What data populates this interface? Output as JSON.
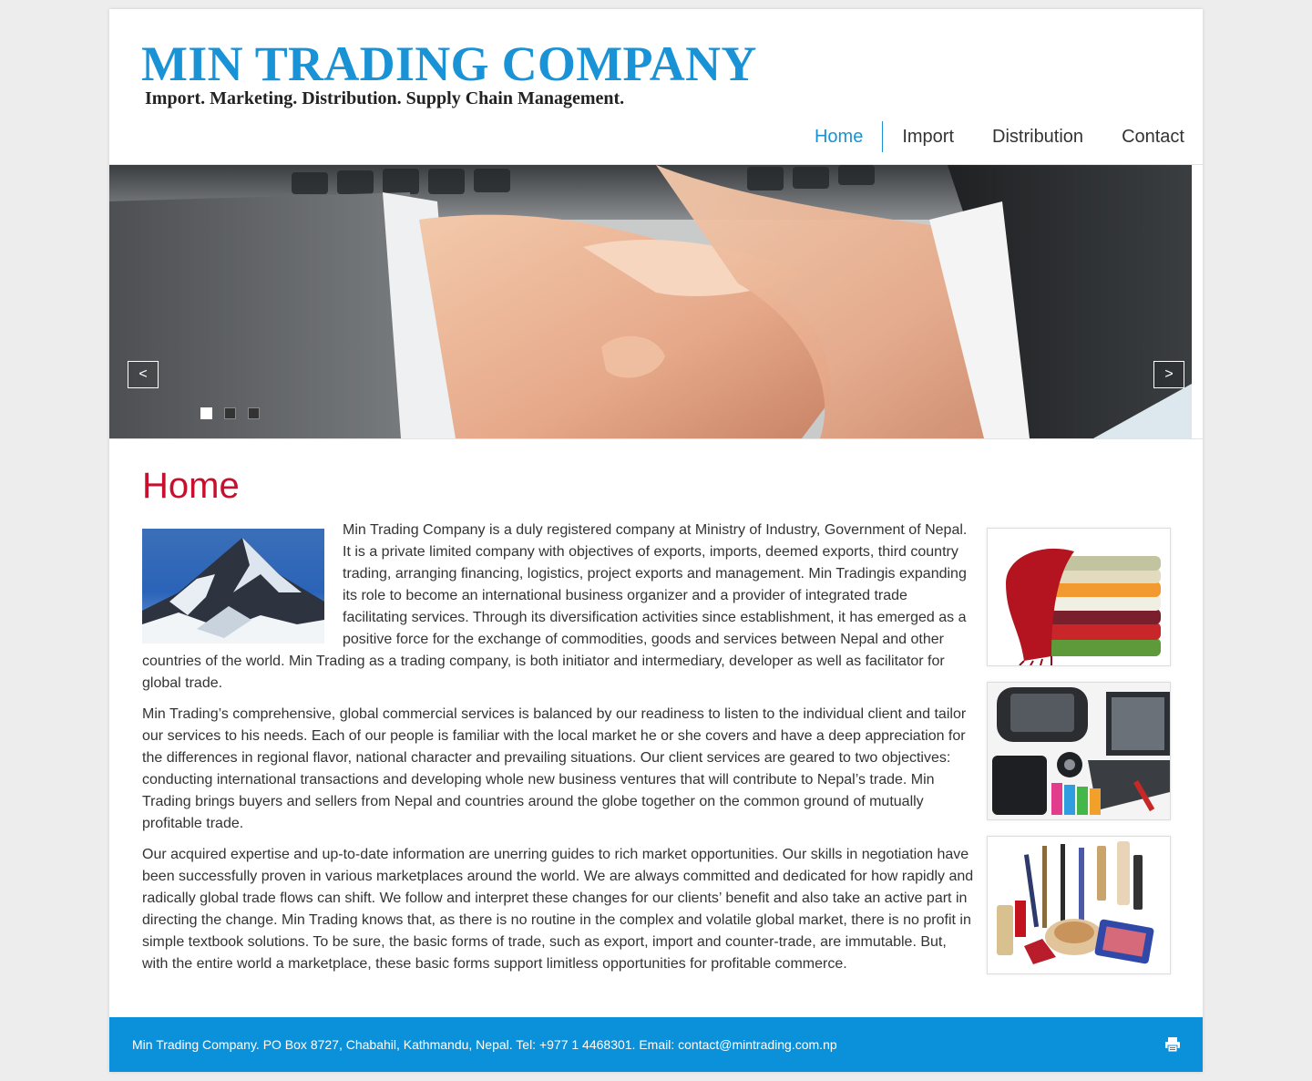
{
  "header": {
    "site_title": "MIN TRADING COMPANY",
    "tagline": "Import. Marketing. Distribution. Supply Chain Management."
  },
  "nav": {
    "items": [
      {
        "label": "Home"
      },
      {
        "label": "Import"
      },
      {
        "label": "Distribution"
      },
      {
        "label": "Contact"
      }
    ]
  },
  "slider": {
    "prev_label": "<",
    "next_label": ">",
    "slide_count": 3,
    "active_slide": 1
  },
  "main": {
    "heading": "Home",
    "paragraphs": [
      "Min Trading Company is a duly registered company at Ministry of Industry, Government of  Nepal. It is a private limited company with objectives of exports, imports, deemed exports, third country trading, arranging financing, logistics, project exports and management. Min Tradingis expanding its role to become an international business organizer and a provider of integrated trade facilitating services. Through its diversification activities since establishment, it has emerged as a positive force for the exchange of commodities, goods and services between Nepal and other countries of the world. Min Trading as a trading company, is both initiator and intermediary, developer as well as facilitator for global trade.",
      "Min Trading’s comprehensive, global commercial services is balanced by our readiness to listen to the individual client and tailor our services to his needs. Each of our people is familiar with the local market he or she covers and have a deep appreciation for the differences in regional flavor, national character and prevailing situations. Our client services are geared to two objectives: conducting international transactions and developing whole new business ventures that will contribute to Nepal’s trade. Min Trading brings buyers and sellers from Nepal and countries around the globe together on the common ground of mutually profitable trade.",
      "Our acquired expertise and up-to-date information are unerring guides to rich market opportunities. Our skills in negotiation have been successfully proven in various marketplaces around the world. We are always committed and dedicated for how rapidly and radically global trade flows can shift. We follow and interpret these changes for our clients’ benefit and also take an active part in directing the change. Min Trading knows that, as there is no routine in the complex and volatile global market, there is no profit in simple textbook solutions. To be sure, the basic forms of trade, such as export, import and counter-trade, are immutable. But, with the entire world a marketplace, these basic forms support limitless opportunities for profitable commerce."
    ]
  },
  "footer": {
    "text": "Min Trading Company. PO Box 8727, Chabahil, Kathmandu, Nepal. Tel: +977 1 4468301. Email: contact@mintrading.com.np",
    "print_icon": "printer-icon"
  },
  "colors": {
    "brand_blue": "#1a92d6",
    "heading_red": "#c8102e",
    "footer_blue": "#0b90da"
  }
}
